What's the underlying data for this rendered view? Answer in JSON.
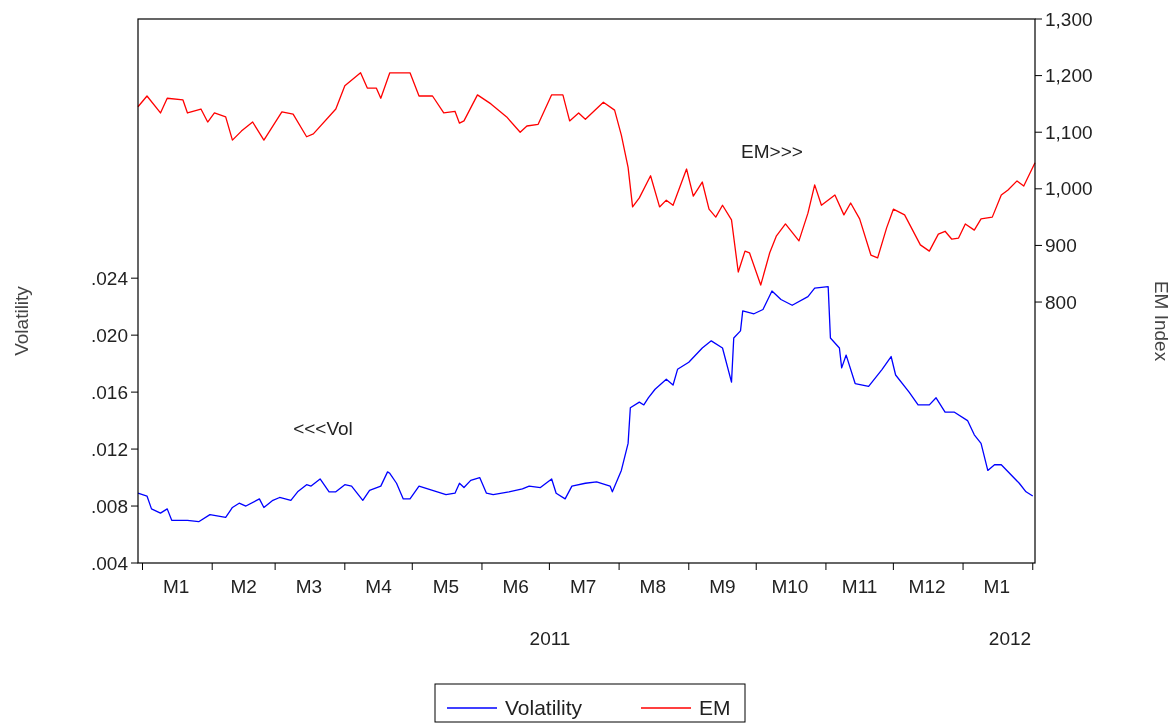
{
  "chart_data": {
    "type": "line",
    "ylabel": "Volatility",
    "y2label": "EM Index",
    "xlim": [
      "2010-12-30",
      "2012-02-02"
    ],
    "xticks": [
      {
        "value": "2011-01-01",
        "label": null
      },
      {
        "value": "2011-01-16",
        "label": "M1"
      },
      {
        "value": "2011-02-01",
        "label": null
      },
      {
        "value": "2011-02-15",
        "label": "M2"
      },
      {
        "value": "2011-03-01",
        "label": null
      },
      {
        "value": "2011-03-16",
        "label": "M3"
      },
      {
        "value": "2011-04-01",
        "label": null
      },
      {
        "value": "2011-04-16",
        "label": "M4"
      },
      {
        "value": "2011-05-01",
        "label": null
      },
      {
        "value": "2011-05-16",
        "label": "M5"
      },
      {
        "value": "2011-06-01",
        "label": null
      },
      {
        "value": "2011-06-16",
        "label": "M6"
      },
      {
        "value": "2011-07-01",
        "label": null
      },
      {
        "value": "2011-07-16",
        "label": "M7"
      },
      {
        "value": "2011-08-01",
        "label": null
      },
      {
        "value": "2011-08-16",
        "label": "M8"
      },
      {
        "value": "2011-09-01",
        "label": null
      },
      {
        "value": "2011-09-16",
        "label": "M9"
      },
      {
        "value": "2011-10-01",
        "label": null
      },
      {
        "value": "2011-10-16",
        "label": "M10"
      },
      {
        "value": "2011-11-01",
        "label": null
      },
      {
        "value": "2011-11-16",
        "label": "M11"
      },
      {
        "value": "2011-12-01",
        "label": null
      },
      {
        "value": "2011-12-16",
        "label": "M12"
      },
      {
        "value": "2012-01-01",
        "label": null
      },
      {
        "value": "2012-01-16",
        "label": "M1"
      },
      {
        "value": "2012-02-01",
        "label": null
      }
    ],
    "ylim": [
      0.004,
      0.0422
    ],
    "yticks": [
      {
        "value": 0.004,
        "label": ".004"
      },
      {
        "value": 0.008,
        "label": ".008"
      },
      {
        "value": 0.012,
        "label": ".012"
      },
      {
        "value": 0.016,
        "label": ".016"
      },
      {
        "value": 0.02,
        "label": ".020"
      },
      {
        "value": 0.024,
        "label": ".024"
      }
    ],
    "y2lim": [
      339,
      1300
    ],
    "y2ticks": [
      {
        "value": 800,
        "label": "800"
      },
      {
        "value": 900,
        "label": "900"
      },
      {
        "value": 1000,
        "label": "1,000"
      },
      {
        "value": 1100,
        "label": "1,100"
      },
      {
        "value": 1200,
        "label": "1,200"
      },
      {
        "value": 1300,
        "label": "1,300"
      }
    ],
    "grid": false,
    "legend": "bottom",
    "line_style": "solid",
    "marker": "none",
    "annotations": [
      "<<<Vol",
      "EM>>>",
      "2011",
      "2012"
    ],
    "series": [
      {
        "name": "Volatility",
        "color": "#0000ff",
        "x": [
          "2010-12-30",
          "2011-01-03",
          "2011-01-05",
          "2011-01-09",
          "2011-01-12",
          "2011-01-14",
          "2011-01-21",
          "2011-01-26",
          "2011-01-31",
          "2011-02-07",
          "2011-02-10",
          "2011-02-13",
          "2011-02-16",
          "2011-02-22",
          "2011-02-24",
          "2011-02-28",
          "2011-03-03",
          "2011-03-08",
          "2011-03-11",
          "2011-03-15",
          "2011-03-17",
          "2011-03-21",
          "2011-03-25",
          "2011-03-28",
          "2011-04-01",
          "2011-04-04",
          "2011-04-09",
          "2011-04-12",
          "2011-04-17",
          "2011-04-20",
          "2011-04-21",
          "2011-04-24",
          "2011-04-27",
          "2011-04-30",
          "2011-05-04",
          "2011-05-10",
          "2011-05-16",
          "2011-05-20",
          "2011-05-22",
          "2011-05-24",
          "2011-05-27",
          "2011-05-31",
          "2011-06-03",
          "2011-06-06",
          "2011-06-13",
          "2011-06-19",
          "2011-06-22",
          "2011-06-27",
          "2011-07-02",
          "2011-07-04",
          "2011-07-08",
          "2011-07-11",
          "2011-07-17",
          "2011-07-22",
          "2011-07-28",
          "2011-07-29",
          "2011-08-02",
          "2011-08-05",
          "2011-08-06",
          "2011-08-10",
          "2011-08-12",
          "2011-08-14",
          "2011-08-17",
          "2011-08-22",
          "2011-08-25",
          "2011-08-27",
          "2011-09-01",
          "2011-09-07",
          "2011-09-11",
          "2011-09-16",
          "2011-09-20",
          "2011-09-21",
          "2011-09-24",
          "2011-09-25",
          "2011-09-30",
          "2011-10-04",
          "2011-10-08",
          "2011-10-12",
          "2011-10-17",
          "2011-10-24",
          "2011-10-27",
          "2011-11-02",
          "2011-11-03",
          "2011-11-07",
          "2011-11-08",
          "2011-11-10",
          "2011-11-14",
          "2011-11-20",
          "2011-11-26",
          "2011-11-30",
          "2011-12-02",
          "2011-12-08",
          "2011-12-12",
          "2011-12-17",
          "2011-12-20",
          "2011-12-24",
          "2011-12-28",
          "2012-01-03",
          "2012-01-06",
          "2012-01-09",
          "2012-01-12",
          "2012-01-15",
          "2012-01-18",
          "2012-01-26",
          "2012-01-29",
          "2012-02-01"
        ],
        "values": [
          0.0089,
          0.0087,
          0.0078,
          0.0075,
          0.0078,
          0.007,
          0.007,
          0.0069,
          0.0074,
          0.0072,
          0.0079,
          0.0082,
          0.008,
          0.0085,
          0.0079,
          0.0084,
          0.0086,
          0.0084,
          0.009,
          0.0095,
          0.0094,
          0.0099,
          0.009,
          0.009,
          0.0095,
          0.0094,
          0.0084,
          0.0091,
          0.0094,
          0.0104,
          0.0103,
          0.0096,
          0.0085,
          0.0085,
          0.0094,
          0.0091,
          0.0088,
          0.0089,
          0.0096,
          0.0093,
          0.0098,
          0.01,
          0.0089,
          0.0088,
          0.009,
          0.0092,
          0.0094,
          0.0093,
          0.0099,
          0.0089,
          0.0085,
          0.0094,
          0.0096,
          0.0097,
          0.0094,
          0.009,
          0.0105,
          0.0124,
          0.0149,
          0.0153,
          0.0151,
          0.0156,
          0.0162,
          0.0169,
          0.0165,
          0.0176,
          0.0181,
          0.0191,
          0.0196,
          0.0191,
          0.0167,
          0.0198,
          0.0203,
          0.0217,
          0.0215,
          0.0218,
          0.0231,
          0.0225,
          0.0221,
          0.0227,
          0.0233,
          0.0234,
          0.0198,
          0.0191,
          0.0177,
          0.0186,
          0.0166,
          0.0164,
          0.0176,
          0.0185,
          0.0172,
          0.016,
          0.0151,
          0.0151,
          0.0156,
          0.0146,
          0.0146,
          0.014,
          0.013,
          0.0124,
          0.0105,
          0.0109,
          0.0109,
          0.0096,
          0.009,
          0.0087
        ]
      },
      {
        "name": "EM",
        "color": "#ff0000",
        "axis": "y2",
        "x": [
          "2010-12-30",
          "2011-01-03",
          "2011-01-09",
          "2011-01-12",
          "2011-01-19",
          "2011-01-21",
          "2011-01-27",
          "2011-01-30",
          "2011-02-02",
          "2011-02-07",
          "2011-02-10",
          "2011-02-14",
          "2011-02-19",
          "2011-02-24",
          "2011-03-04",
          "2011-03-09",
          "2011-03-15",
          "2011-03-18",
          "2011-03-28",
          "2011-04-01",
          "2011-04-08",
          "2011-04-11",
          "2011-04-15",
          "2011-04-17",
          "2011-04-21",
          "2011-04-30",
          "2011-05-04",
          "2011-05-10",
          "2011-05-15",
          "2011-05-20",
          "2011-05-22",
          "2011-05-24",
          "2011-05-30",
          "2011-06-05",
          "2011-06-12",
          "2011-06-18",
          "2011-06-21",
          "2011-06-26",
          "2011-07-02",
          "2011-07-07",
          "2011-07-10",
          "2011-07-14",
          "2011-07-17",
          "2011-07-25",
          "2011-07-30",
          "2011-08-02",
          "2011-08-05",
          "2011-08-07",
          "2011-08-10",
          "2011-08-15",
          "2011-08-19",
          "2011-08-22",
          "2011-08-25",
          "2011-08-31",
          "2011-09-03",
          "2011-09-07",
          "2011-09-10",
          "2011-09-13",
          "2011-09-16",
          "2011-09-20",
          "2011-09-23",
          "2011-09-26",
          "2011-09-28",
          "2011-10-03",
          "2011-10-07",
          "2011-10-10",
          "2011-10-14",
          "2011-10-20",
          "2011-10-24",
          "2011-10-27",
          "2011-10-30",
          "2011-11-05",
          "2011-11-09",
          "2011-11-12",
          "2011-11-16",
          "2011-11-21",
          "2011-11-24",
          "2011-11-28",
          "2011-12-01",
          "2011-12-06",
          "2011-12-13",
          "2011-12-17",
          "2011-12-21",
          "2011-12-24",
          "2011-12-27",
          "2011-12-30",
          "2012-01-02",
          "2012-01-06",
          "2012-01-09",
          "2012-01-14",
          "2012-01-18",
          "2012-01-21",
          "2012-01-25",
          "2012-01-28",
          "2012-02-02"
        ],
        "values": [
          1145,
          1164,
          1134,
          1160,
          1157,
          1134,
          1141,
          1118,
          1134,
          1127,
          1086,
          1102,
          1118,
          1086,
          1136,
          1132,
          1092,
          1097,
          1141,
          1182,
          1205,
          1178,
          1178,
          1160,
          1205,
          1205,
          1164,
          1164,
          1134,
          1137,
          1116,
          1120,
          1166,
          1150,
          1127,
          1100,
          1111,
          1114,
          1166,
          1166,
          1120,
          1134,
          1123,
          1153,
          1139,
          1095,
          1038,
          968,
          984,
          1023,
          968,
          980,
          971,
          1035,
          987,
          1012,
          964,
          950,
          971,
          945,
          853,
          890,
          887,
          830,
          887,
          917,
          938,
          908,
          957,
          1007,
          971,
          989,
          954,
          975,
          947,
          883,
          878,
          931,
          964,
          954,
          901,
          890,
          920,
          925,
          911,
          913,
          938,
          927,
          947,
          950,
          989,
          998,
          1014,
          1005,
          1046
        ]
      }
    ]
  }
}
